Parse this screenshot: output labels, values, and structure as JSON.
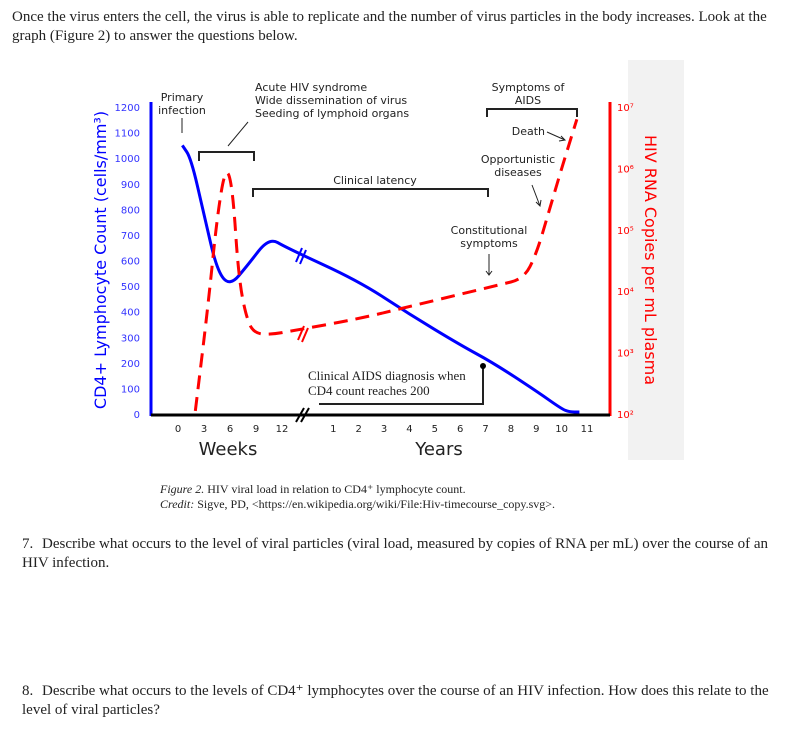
{
  "intro": "Once the virus enters the cell, the virus is able to replicate and the number of virus particles in the body increases. Look at the graph (Figure 2) to answer the questions below.",
  "caption": {
    "label": "Figure 2.",
    "text": " HIV viral load in relation to CD4⁺ lymphocyte count.",
    "credit_label": "Credit:",
    "credit": " Sigve, PD, <https://en.wikipedia.org/wiki/File:Hiv-timecourse_copy.svg>."
  },
  "questions": [
    {
      "num": "7.",
      "text": "Describe what occurs to the level of viral particles (viral load, measured by copies of RNA per mL) over the course of an HIV infection."
    },
    {
      "num": "8.",
      "text": "Describe what occurs to the levels of CD4⁺ lymphocytes over the course of an HIV infection. How does this relate to the level of viral particles?"
    }
  ],
  "chart_data": {
    "type": "line",
    "ylabel_left": "CD4+ Lymphocyte Count (cells/mm³)",
    "ylabel_right": "HIV RNA Copies per mL plasma",
    "xlabel_weeks": "Weeks",
    "xlabel_years": "Years",
    "week_ticks": [
      "0",
      "3",
      "6",
      "9",
      "12"
    ],
    "year_ticks": [
      "1",
      "2",
      "3",
      "4",
      "5",
      "6",
      "7",
      "8",
      "9",
      "10",
      "11"
    ],
    "left_ticks": [
      "0",
      "100",
      "200",
      "300",
      "400",
      "500",
      "600",
      "700",
      "800",
      "900",
      "1000",
      "1100",
      "1200"
    ],
    "right_ticks": [
      "10²",
      "10³",
      "10⁴",
      "10⁵",
      "10⁶",
      "10⁷"
    ],
    "ylim_left": [
      0,
      1200
    ],
    "ylim_right_log10": [
      2,
      7
    ],
    "colors": {
      "cd4": "#0000ff",
      "viral": "#ff0000"
    },
    "series": [
      {
        "key": "cd4",
        "points": [
          [
            "w",
            0.5,
            1050
          ],
          [
            "w",
            1.5,
            1000
          ],
          [
            "w",
            3,
            780
          ],
          [
            "w",
            4.5,
            560
          ],
          [
            "w",
            6,
            500
          ],
          [
            "w",
            8,
            580
          ],
          [
            "w",
            10.5,
            690
          ],
          [
            "w",
            12.5,
            650
          ],
          [
            "y",
            2,
            520
          ],
          [
            "y",
            4,
            390
          ],
          [
            "y",
            6,
            270
          ],
          [
            "y",
            7.3,
            200
          ],
          [
            "y",
            9,
            90
          ],
          [
            "y",
            10,
            20
          ],
          [
            "y",
            10.3,
            8
          ],
          [
            "y",
            10.7,
            8
          ]
        ]
      },
      {
        "key": "viral",
        "log": true,
        "points": [
          [
            "w",
            2,
            2.05
          ],
          [
            "w",
            3.5,
            3.8
          ],
          [
            "w",
            4.5,
            5.2
          ],
          [
            "w",
            5.5,
            6.05
          ],
          [
            "w",
            6.3,
            5.7
          ],
          [
            "w",
            7,
            4.2
          ],
          [
            "w",
            8,
            3.5
          ],
          [
            "w",
            9,
            3.3
          ],
          [
            "w",
            11,
            3.3
          ],
          [
            "w",
            13,
            3.35
          ],
          [
            "y",
            2,
            3.55
          ],
          [
            "y",
            4,
            3.75
          ],
          [
            "y",
            6,
            3.95
          ],
          [
            "y",
            7.5,
            4.1
          ],
          [
            "y",
            8.5,
            4.2
          ],
          [
            "y",
            9,
            4.6
          ],
          [
            "y",
            9.5,
            5.3
          ],
          [
            "y",
            10,
            6.0
          ],
          [
            "y",
            10.6,
            6.8
          ]
        ]
      }
    ],
    "annotations": {
      "primary": [
        "Primary",
        "infection"
      ],
      "acute": [
        "Acute HIV syndrome",
        "Wide dissemination of virus",
        "Seeding of lymphoid organs"
      ],
      "latency": "Clinical latency",
      "aids_symptoms": [
        "Symptoms of",
        "AIDS"
      ],
      "death": "Death",
      "opportunistic": [
        "Opportunistic",
        "diseases"
      ],
      "constitutional": [
        "Constitutional",
        "symptoms"
      ],
      "diagnosis": [
        "Clinical AIDS diagnosis when",
        "CD4 count reaches 200"
      ]
    }
  }
}
